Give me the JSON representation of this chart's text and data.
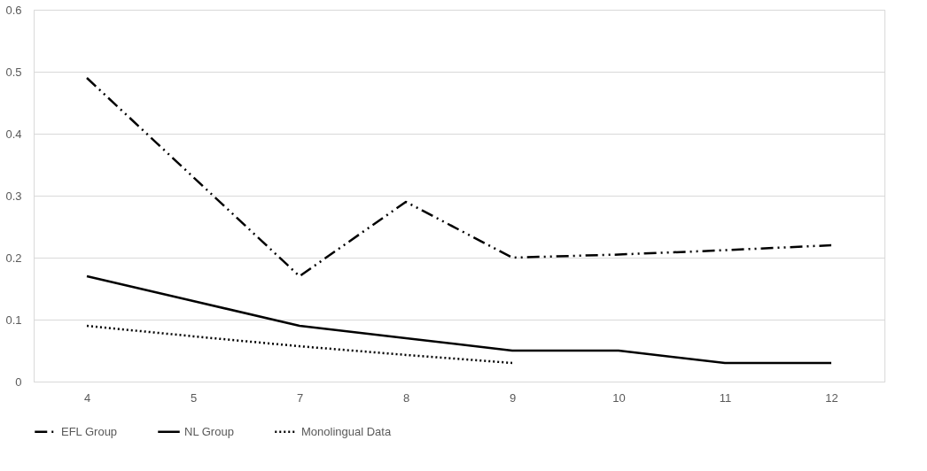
{
  "chart_data": {
    "type": "line",
    "categories": [
      "4",
      "5",
      "7",
      "8",
      "9",
      "10",
      "11",
      "12"
    ],
    "ylim": [
      0,
      0.6
    ],
    "yticks": [
      {
        "value": 0,
        "label": "0"
      },
      0.1,
      0.2,
      0.3,
      0.4,
      0.5,
      0.6
    ],
    "grid": "y",
    "legend": "bottom",
    "marker": "none",
    "series": [
      {
        "name": "EFL Group",
        "color": "#000000",
        "line_style": "dashed",
        "values": [
          0.49,
          0.33,
          0.17,
          0.29,
          0.2,
          0.205,
          0.212,
          0.22
        ]
      },
      {
        "name": "NL Group",
        "color": "#000000",
        "line_style": "solid",
        "values": [
          0.17,
          0.13,
          0.09,
          0.07,
          0.05,
          0.05,
          0.03,
          0.03
        ]
      },
      {
        "name": "Monolingual Data",
        "color": "#000000",
        "line_style": "dotted",
        "values": [
          0.09,
          0.073,
          0.057,
          0.043,
          0.03,
          null,
          null,
          null
        ]
      }
    ]
  }
}
